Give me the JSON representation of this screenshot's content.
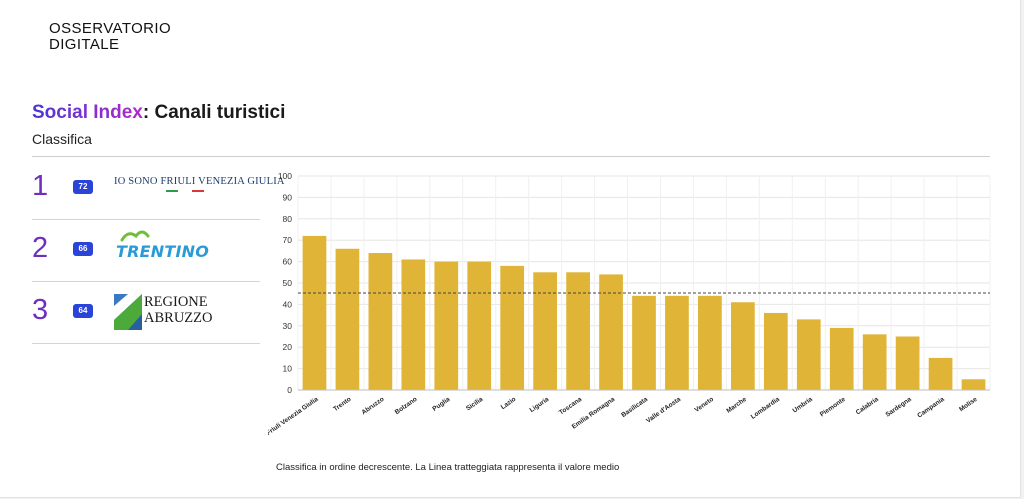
{
  "logo": {
    "line1": "OSSERVATORIO",
    "line2": "DIGITALE"
  },
  "header": {
    "title_highlight": "Social Index",
    "title_rest": ": Canali turistici",
    "subtitle": "Classifica"
  },
  "ranking": [
    {
      "rank": "1",
      "score": "72",
      "brand": "IO SONO FRIULI VENEZIA GIULIA"
    },
    {
      "rank": "2",
      "score": "66",
      "brand": "TRENTINO"
    },
    {
      "rank": "3",
      "score": "64",
      "brand": "REGIONE ABRUZZO"
    }
  ],
  "colors": {
    "bar": "#e0b437",
    "accent_purple": "#6e2fbf",
    "badge": "#2b44d8",
    "mean_line": "#444444",
    "grid": "#e6e6e6"
  },
  "chart_data": {
    "type": "bar",
    "categories": [
      "Friuli Venezia Giulia",
      "Trento",
      "Abruzzo",
      "Bolzano",
      "Puglia",
      "Sicilia",
      "Lazio",
      "Liguria",
      "Toscana",
      "Emilia Romagna",
      "Basilicata",
      "Valle d'Aosta",
      "Veneto",
      "Marche",
      "Lombardia",
      "Umbria",
      "Piemonte",
      "Calabria",
      "Sardegna",
      "Campania",
      "Molise"
    ],
    "values": [
      72,
      66,
      64,
      61,
      60,
      60,
      58,
      55,
      55,
      54,
      44,
      44,
      44,
      41,
      36,
      33,
      29,
      26,
      25,
      15,
      5
    ],
    "ylim": [
      0,
      100
    ],
    "yticks": [
      0,
      10,
      20,
      30,
      40,
      50,
      60,
      70,
      80,
      90,
      100
    ],
    "mean_line": 45.3,
    "grid": true
  },
  "footnote": "Classifica in ordine decrescente. La Linea tratteggiata rappresenta il valore medio"
}
